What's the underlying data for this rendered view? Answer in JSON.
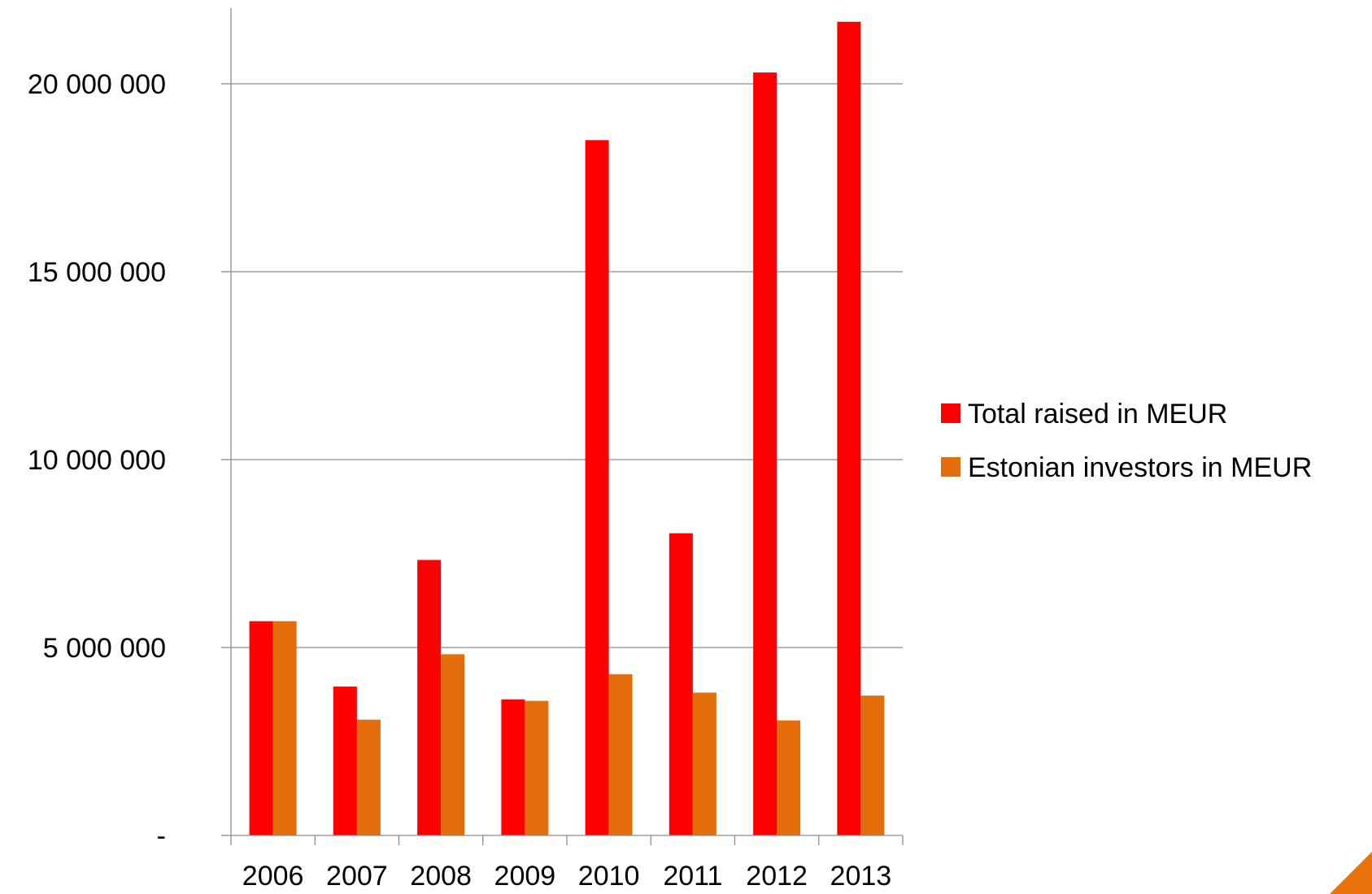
{
  "chart_data": {
    "type": "bar",
    "categories": [
      "2006",
      "2007",
      "2008",
      "2009",
      "2010",
      "2011",
      "2012",
      "2013"
    ],
    "series": [
      {
        "name": "Total raised in MEUR",
        "color": "#ff0000",
        "values": [
          5700000,
          3960000,
          7330000,
          3620000,
          18500000,
          8040000,
          20300000,
          21650000
        ]
      },
      {
        "name": "Estonian investors in MEUR",
        "color": "#e46c0a",
        "values": [
          5700000,
          3080000,
          4820000,
          3580000,
          4290000,
          3800000,
          3060000,
          3720000
        ]
      }
    ],
    "yticks": [
      {
        "value": 0,
        "label": "-"
      },
      {
        "value": 5000000,
        "label": "5 000 000"
      },
      {
        "value": 10000000,
        "label": "10 000 000"
      },
      {
        "value": 15000000,
        "label": "15 000 000"
      },
      {
        "value": 20000000,
        "label": "20 000 000"
      }
    ],
    "ylim": [
      0,
      22000000
    ],
    "grid": true,
    "legend_position": "right",
    "title": "",
    "xlabel": "",
    "ylabel": ""
  },
  "decoration": {
    "accent_color": "#e8720c"
  }
}
